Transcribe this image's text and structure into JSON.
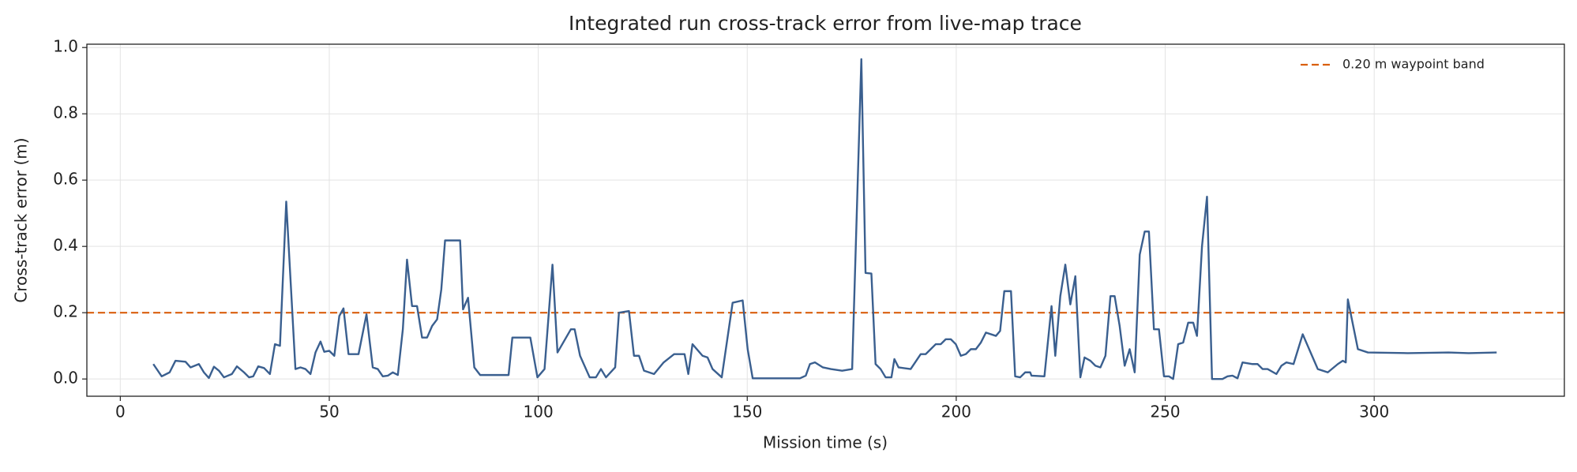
{
  "chart_data": {
    "type": "line",
    "title": "Integrated run cross-track error from live-map trace",
    "x_label": "Mission time (s)",
    "y_label": "Cross-track error (m)",
    "xlim": [
      -8,
      345.5
    ],
    "ylim": [
      -0.052,
      1.01
    ],
    "xticks": [
      0,
      50,
      100,
      150,
      200,
      250,
      300
    ],
    "yticks": [
      {
        "value": 0,
        "label": "0.0"
      },
      {
        "value": 0.2,
        "label": "0.2"
      },
      {
        "value": 0.4,
        "label": "0.4"
      },
      {
        "value": 0.6,
        "label": "0.6"
      },
      {
        "value": 0.8,
        "label": "0.8"
      },
      {
        "value": 1.0,
        "label": "1.0"
      }
    ],
    "grid": true,
    "legend_position": "upper right",
    "threshold": {
      "name": "0.20 m waypoint band",
      "value": 0.2,
      "color": "#d95f0e",
      "style": "dashed"
    },
    "series": [
      {
        "name": "cross-track error",
        "color": "#3a5f8f",
        "x": [
          7.9,
          9.9,
          11.8,
          13.2,
          15.6,
          16.8,
          18.8,
          20,
          21.2,
          22.4,
          23.6,
          24.8,
          26.7,
          27.9,
          29.6,
          30.8,
          31.8,
          33,
          34.4,
          35.8,
          37,
          38.2,
          39.7,
          41.9,
          43.1,
          44.3,
          45.5,
          46.7,
          47.9,
          48.8,
          50,
          51.2,
          52.4,
          53.4,
          54.6,
          57,
          58.9,
          60.4,
          61.6,
          62.8,
          64,
          65.2,
          66.4,
          67.6,
          68.6,
          69.8,
          71,
          72.2,
          73.4,
          74.6,
          75.8,
          76.8,
          77.7,
          81.3,
          82,
          83.2,
          84.7,
          86.1,
          92.9,
          93.8,
          98.1,
          99.8,
          101.5,
          103.4,
          104.6,
          107.8,
          108.7,
          110,
          112.3,
          113.8,
          115,
          116.2,
          118.4,
          119.3,
          121.7,
          122.9,
          124.1,
          125.3,
          127.7,
          130,
          132.5,
          135,
          135.9,
          136.9,
          139.3,
          140.5,
          141.7,
          143.9,
          146.5,
          148.9,
          150.1,
          151.3,
          162.6,
          164,
          165,
          166.2,
          168.1,
          170,
          172.7,
          175.1,
          177.3,
          178.3,
          179.7,
          180.7,
          181.9,
          183.1,
          184.5,
          185.2,
          186.2,
          189.1,
          191.5,
          192.7,
          193.9,
          195.1,
          196.3,
          197.5,
          198.7,
          199.9,
          201.1,
          202.3,
          203.5,
          204.7,
          205.9,
          207.1,
          209.5,
          210.5,
          211.5,
          213.1,
          214.1,
          215.3,
          216.5,
          217.7,
          218,
          221.1,
          222.8,
          223.7,
          224.9,
          226.1,
          227.3,
          228.5,
          229.7,
          230.7,
          232.1,
          233.3,
          234.5,
          235.7,
          236.9,
          237.9,
          239.1,
          240.3,
          241.5,
          242.7,
          243.9,
          245.1,
          246.1,
          247.3,
          248.5,
          249.7,
          250.9,
          251.9,
          253.1,
          254.3,
          255.5,
          256.7,
          257.6,
          258.8,
          260,
          261.2,
          263.7,
          264.9,
          266.1,
          267.3,
          268.5,
          270.9,
          272.1,
          273.3,
          274.5,
          276.6,
          277.8,
          279,
          280.7,
          282.9,
          284.1,
          285.3,
          286.5,
          288.9,
          291.3,
          292.5,
          293.2,
          293.7,
          294.9,
          296.1,
          298.5,
          308,
          317.8,
          322.6,
          329.3
        ],
        "values": [
          0.045,
          0.008,
          0.02,
          0.055,
          0.052,
          0.035,
          0.045,
          0.02,
          0.003,
          0.037,
          0.025,
          0.005,
          0.015,
          0.038,
          0.02,
          0.005,
          0.008,
          0.038,
          0.033,
          0.015,
          0.105,
          0.1,
          0.535,
          0.03,
          0.035,
          0.03,
          0.015,
          0.08,
          0.113,
          0.082,
          0.085,
          0.07,
          0.19,
          0.213,
          0.075,
          0.075,
          0.195,
          0.035,
          0.03,
          0.008,
          0.01,
          0.02,
          0.012,
          0.15,
          0.36,
          0.22,
          0.22,
          0.125,
          0.125,
          0.16,
          0.18,
          0.27,
          0.418,
          0.418,
          0.21,
          0.245,
          0.035,
          0.012,
          0.012,
          0.125,
          0.125,
          0.005,
          0.03,
          0.345,
          0.08,
          0.15,
          0.15,
          0.07,
          0.005,
          0.005,
          0.03,
          0.005,
          0.035,
          0.2,
          0.205,
          0.07,
          0.07,
          0.025,
          0.015,
          0.05,
          0.075,
          0.075,
          0.015,
          0.105,
          0.07,
          0.065,
          0.03,
          0.005,
          0.23,
          0.237,
          0.09,
          0.002,
          0.002,
          0.01,
          0.045,
          0.05,
          0.035,
          0.03,
          0.025,
          0.03,
          0.965,
          0.32,
          0.318,
          0.045,
          0.03,
          0.005,
          0.005,
          0.06,
          0.035,
          0.03,
          0.075,
          0.075,
          0.09,
          0.105,
          0.105,
          0.12,
          0.12,
          0.105,
          0.07,
          0.075,
          0.09,
          0.09,
          0.11,
          0.14,
          0.13,
          0.145,
          0.265,
          0.265,
          0.008,
          0.005,
          0.02,
          0.02,
          0.01,
          0.008,
          0.22,
          0.07,
          0.25,
          0.345,
          0.225,
          0.31,
          0.005,
          0.065,
          0.055,
          0.04,
          0.035,
          0.07,
          0.25,
          0.25,
          0.16,
          0.04,
          0.09,
          0.02,
          0.375,
          0.445,
          0.445,
          0.15,
          0.15,
          0.008,
          0.008,
          0.0,
          0.105,
          0.11,
          0.17,
          0.17,
          0.13,
          0.4,
          0.55,
          0.0,
          0.0,
          0.008,
          0.01,
          0.002,
          0.05,
          0.045,
          0.045,
          0.03,
          0.03,
          0.015,
          0.04,
          0.05,
          0.045,
          0.135,
          0.1,
          0.065,
          0.03,
          0.02,
          0.045,
          0.055,
          0.05,
          0.24,
          0.165,
          0.09,
          0.08,
          0.078,
          0.08,
          0.078,
          0.08
        ]
      }
    ]
  }
}
